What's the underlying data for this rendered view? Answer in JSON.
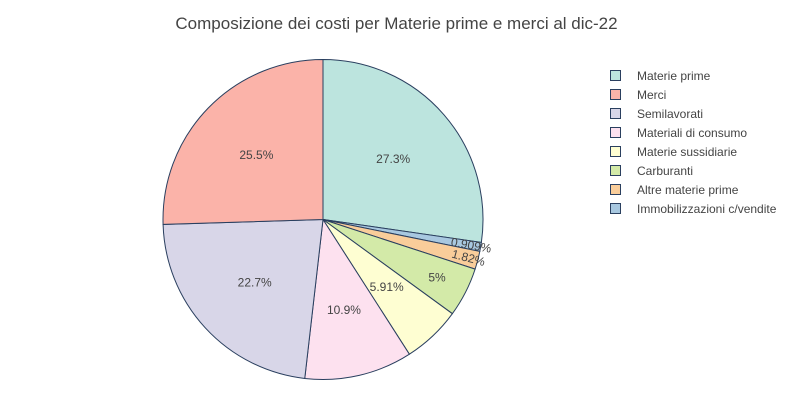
{
  "chart_data": {
    "type": "pie",
    "title": "Composizione dei costi per Materie prime e merci al dic-22",
    "legend_position": "right",
    "slice_border_color": "#2a3f5f",
    "label_color": "#444444",
    "slices": [
      {
        "label": "Materie prime",
        "value": 27.3,
        "text": "27.3%",
        "color": "#bce4de"
      },
      {
        "label": "Immobilizzazioni c/vendite",
        "value": 0.909,
        "text": "0.909%",
        "color": "#a8c8e0"
      },
      {
        "label": "Altre materie prime",
        "value": 1.82,
        "text": "1.82%",
        "color": "#f9cd9a"
      },
      {
        "label": "Carburanti",
        "value": 5.0,
        "text": "5%",
        "color": "#d3eaa8"
      },
      {
        "label": "Materie sussidiarie",
        "value": 5.91,
        "text": "5.91%",
        "color": "#fefed2"
      },
      {
        "label": "Materiali di consumo",
        "value": 10.9,
        "text": "10.9%",
        "color": "#fde1ef"
      },
      {
        "label": "Semilavorati",
        "value": 22.7,
        "text": "22.7%",
        "color": "#d8d6e8"
      },
      {
        "label": "Merci",
        "value": 25.5,
        "text": "25.5%",
        "color": "#fbb3a9"
      }
    ],
    "legend_order": [
      "Materie prime",
      "Merci",
      "Semilavorati",
      "Materiali di consumo",
      "Materie sussidiarie",
      "Carburanti",
      "Altre materie prime",
      "Immobilizzazioni c/vendite"
    ]
  }
}
